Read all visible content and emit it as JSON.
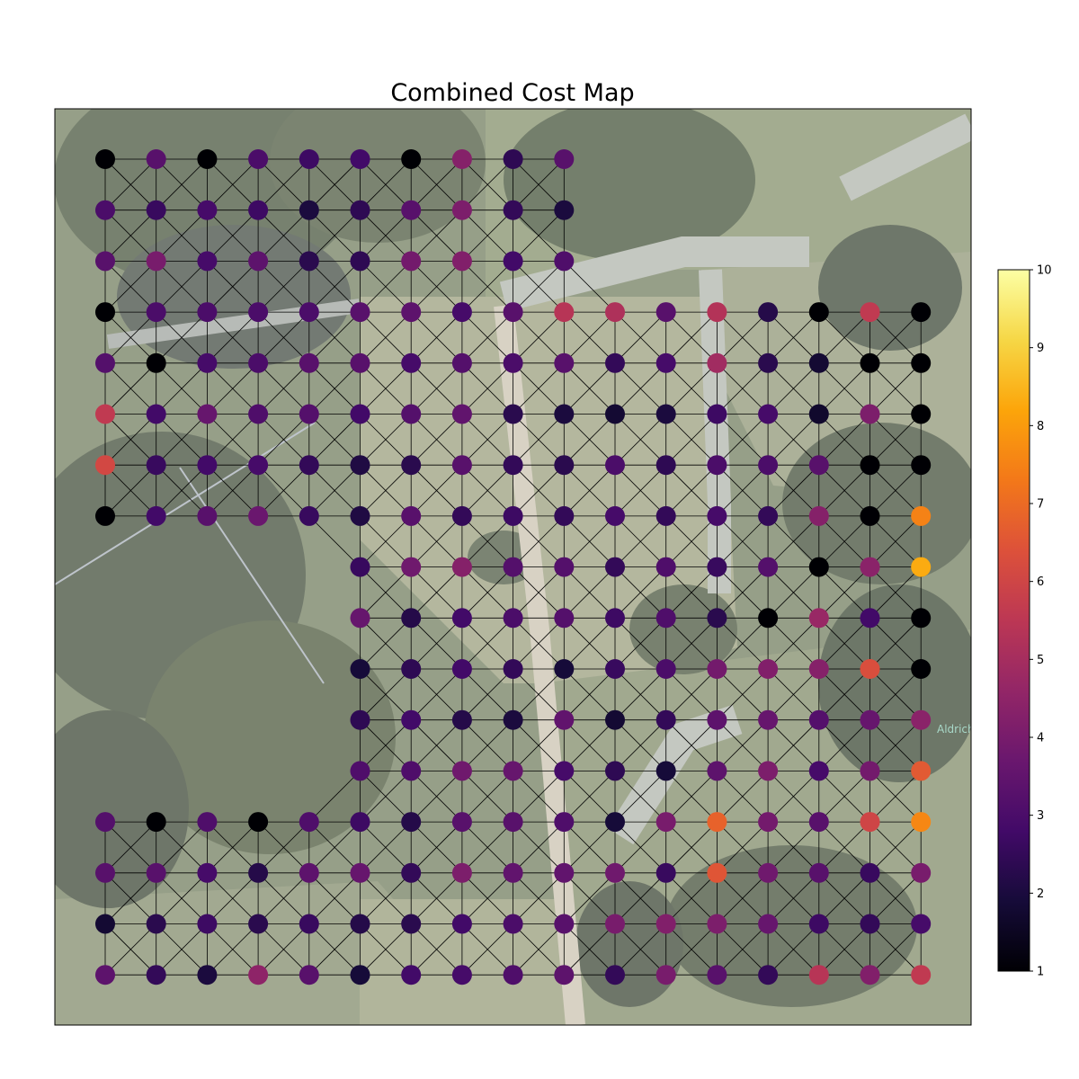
{
  "chart_data": {
    "type": "scatter",
    "title": "Combined Cost Map",
    "map_label": "Aldrich",
    "colormap": "inferno",
    "colorbar": {
      "min": 1,
      "max": 10,
      "ticks": [
        "1",
        "2",
        "3",
        "4",
        "5",
        "6",
        "7",
        "8",
        "9",
        "10"
      ]
    },
    "grid_note": "rows listed top to bottom, columns 0-16 left to right; null = no node",
    "grid": [
      [
        1.0,
        3.3,
        1.0,
        3.0,
        2.7,
        2.8,
        1.0,
        4.3,
        2.4,
        3.3,
        null,
        null,
        null,
        null,
        null,
        null,
        null
      ],
      [
        3.0,
        2.6,
        2.9,
        2.7,
        2.0,
        2.4,
        3.3,
        4.1,
        2.5,
        2.0,
        null,
        null,
        null,
        null,
        null,
        null,
        null
      ],
      [
        3.3,
        4.0,
        2.9,
        3.4,
        2.3,
        2.4,
        3.9,
        4.2,
        2.8,
        3.1,
        null,
        null,
        null,
        null,
        null,
        null,
        null
      ],
      [
        1.0,
        3.0,
        3.0,
        3.0,
        3.0,
        3.3,
        3.4,
        2.9,
        3.3,
        5.4,
        5.2,
        3.3,
        5.3,
        2.2,
        1.0,
        5.6,
        1.0
      ],
      [
        3.2,
        1.0,
        2.9,
        3.0,
        3.3,
        3.3,
        2.9,
        3.2,
        3.0,
        3.3,
        2.5,
        2.9,
        4.9,
        2.3,
        1.8,
        1.0,
        1.0
      ],
      [
        5.6,
        2.8,
        3.6,
        3.1,
        3.2,
        2.8,
        3.2,
        3.5,
        2.3,
        2.0,
        1.8,
        2.0,
        2.7,
        2.9,
        1.7,
        4.1,
        1.0
      ],
      [
        6.1,
        2.6,
        2.8,
        2.9,
        2.5,
        2.1,
        2.3,
        3.3,
        2.5,
        2.3,
        3.0,
        2.4,
        3.0,
        3.0,
        3.3,
        1.0,
        1.0
      ],
      [
        1.0,
        2.8,
        3.3,
        3.7,
        2.6,
        2.1,
        3.3,
        2.5,
        2.7,
        2.5,
        2.9,
        2.5,
        2.9,
        2.5,
        4.3,
        1.0,
        7.5
      ],
      [
        null,
        null,
        null,
        null,
        null,
        2.6,
        3.8,
        4.3,
        3.2,
        3.2,
        2.5,
        3.1,
        2.6,
        3.2,
        1.0,
        4.4,
        8.3
      ],
      [
        null,
        null,
        null,
        null,
        null,
        3.6,
        2.2,
        2.8,
        3.0,
        3.2,
        2.7,
        3.1,
        2.3,
        1.0,
        4.7,
        2.8,
        1.0
      ],
      [
        null,
        null,
        null,
        null,
        null,
        1.9,
        2.4,
        2.8,
        2.5,
        1.9,
        2.6,
        3.0,
        3.9,
        4.2,
        4.3,
        6.3,
        1.0
      ],
      [
        null,
        null,
        null,
        null,
        null,
        2.4,
        2.8,
        2.2,
        2.0,
        3.5,
        1.8,
        2.5,
        3.4,
        3.6,
        3.2,
        3.6,
        4.4
      ],
      [
        null,
        null,
        null,
        null,
        null,
        3.1,
        3.1,
        3.8,
        3.6,
        2.9,
        2.4,
        1.9,
        3.4,
        4.1,
        2.9,
        3.9,
        6.6
      ],
      [
        3.2,
        1.0,
        3.1,
        1.0,
        3.1,
        2.7,
        2.2,
        3.3,
        3.3,
        3.1,
        1.9,
        4.0,
        6.8,
        3.9,
        3.3,
        6.0,
        7.6
      ],
      [
        3.3,
        3.3,
        2.9,
        2.2,
        3.4,
        3.6,
        2.5,
        4.1,
        3.5,
        3.5,
        3.8,
        2.6,
        6.5,
        3.8,
        3.3,
        2.6,
        4.0
      ],
      [
        1.8,
        2.3,
        2.7,
        2.3,
        2.6,
        2.2,
        2.3,
        2.8,
        3.0,
        3.3,
        4.0,
        4.2,
        4.1,
        3.6,
        2.7,
        2.5,
        2.9
      ],
      [
        3.4,
        2.5,
        2.0,
        4.5,
        3.3,
        1.9,
        2.8,
        2.9,
        3.1,
        3.4,
        2.5,
        4.0,
        3.3,
        2.5,
        5.4,
        4.2,
        5.6
      ]
    ],
    "legend": "colorbar-right",
    "grid_lines": false
  }
}
